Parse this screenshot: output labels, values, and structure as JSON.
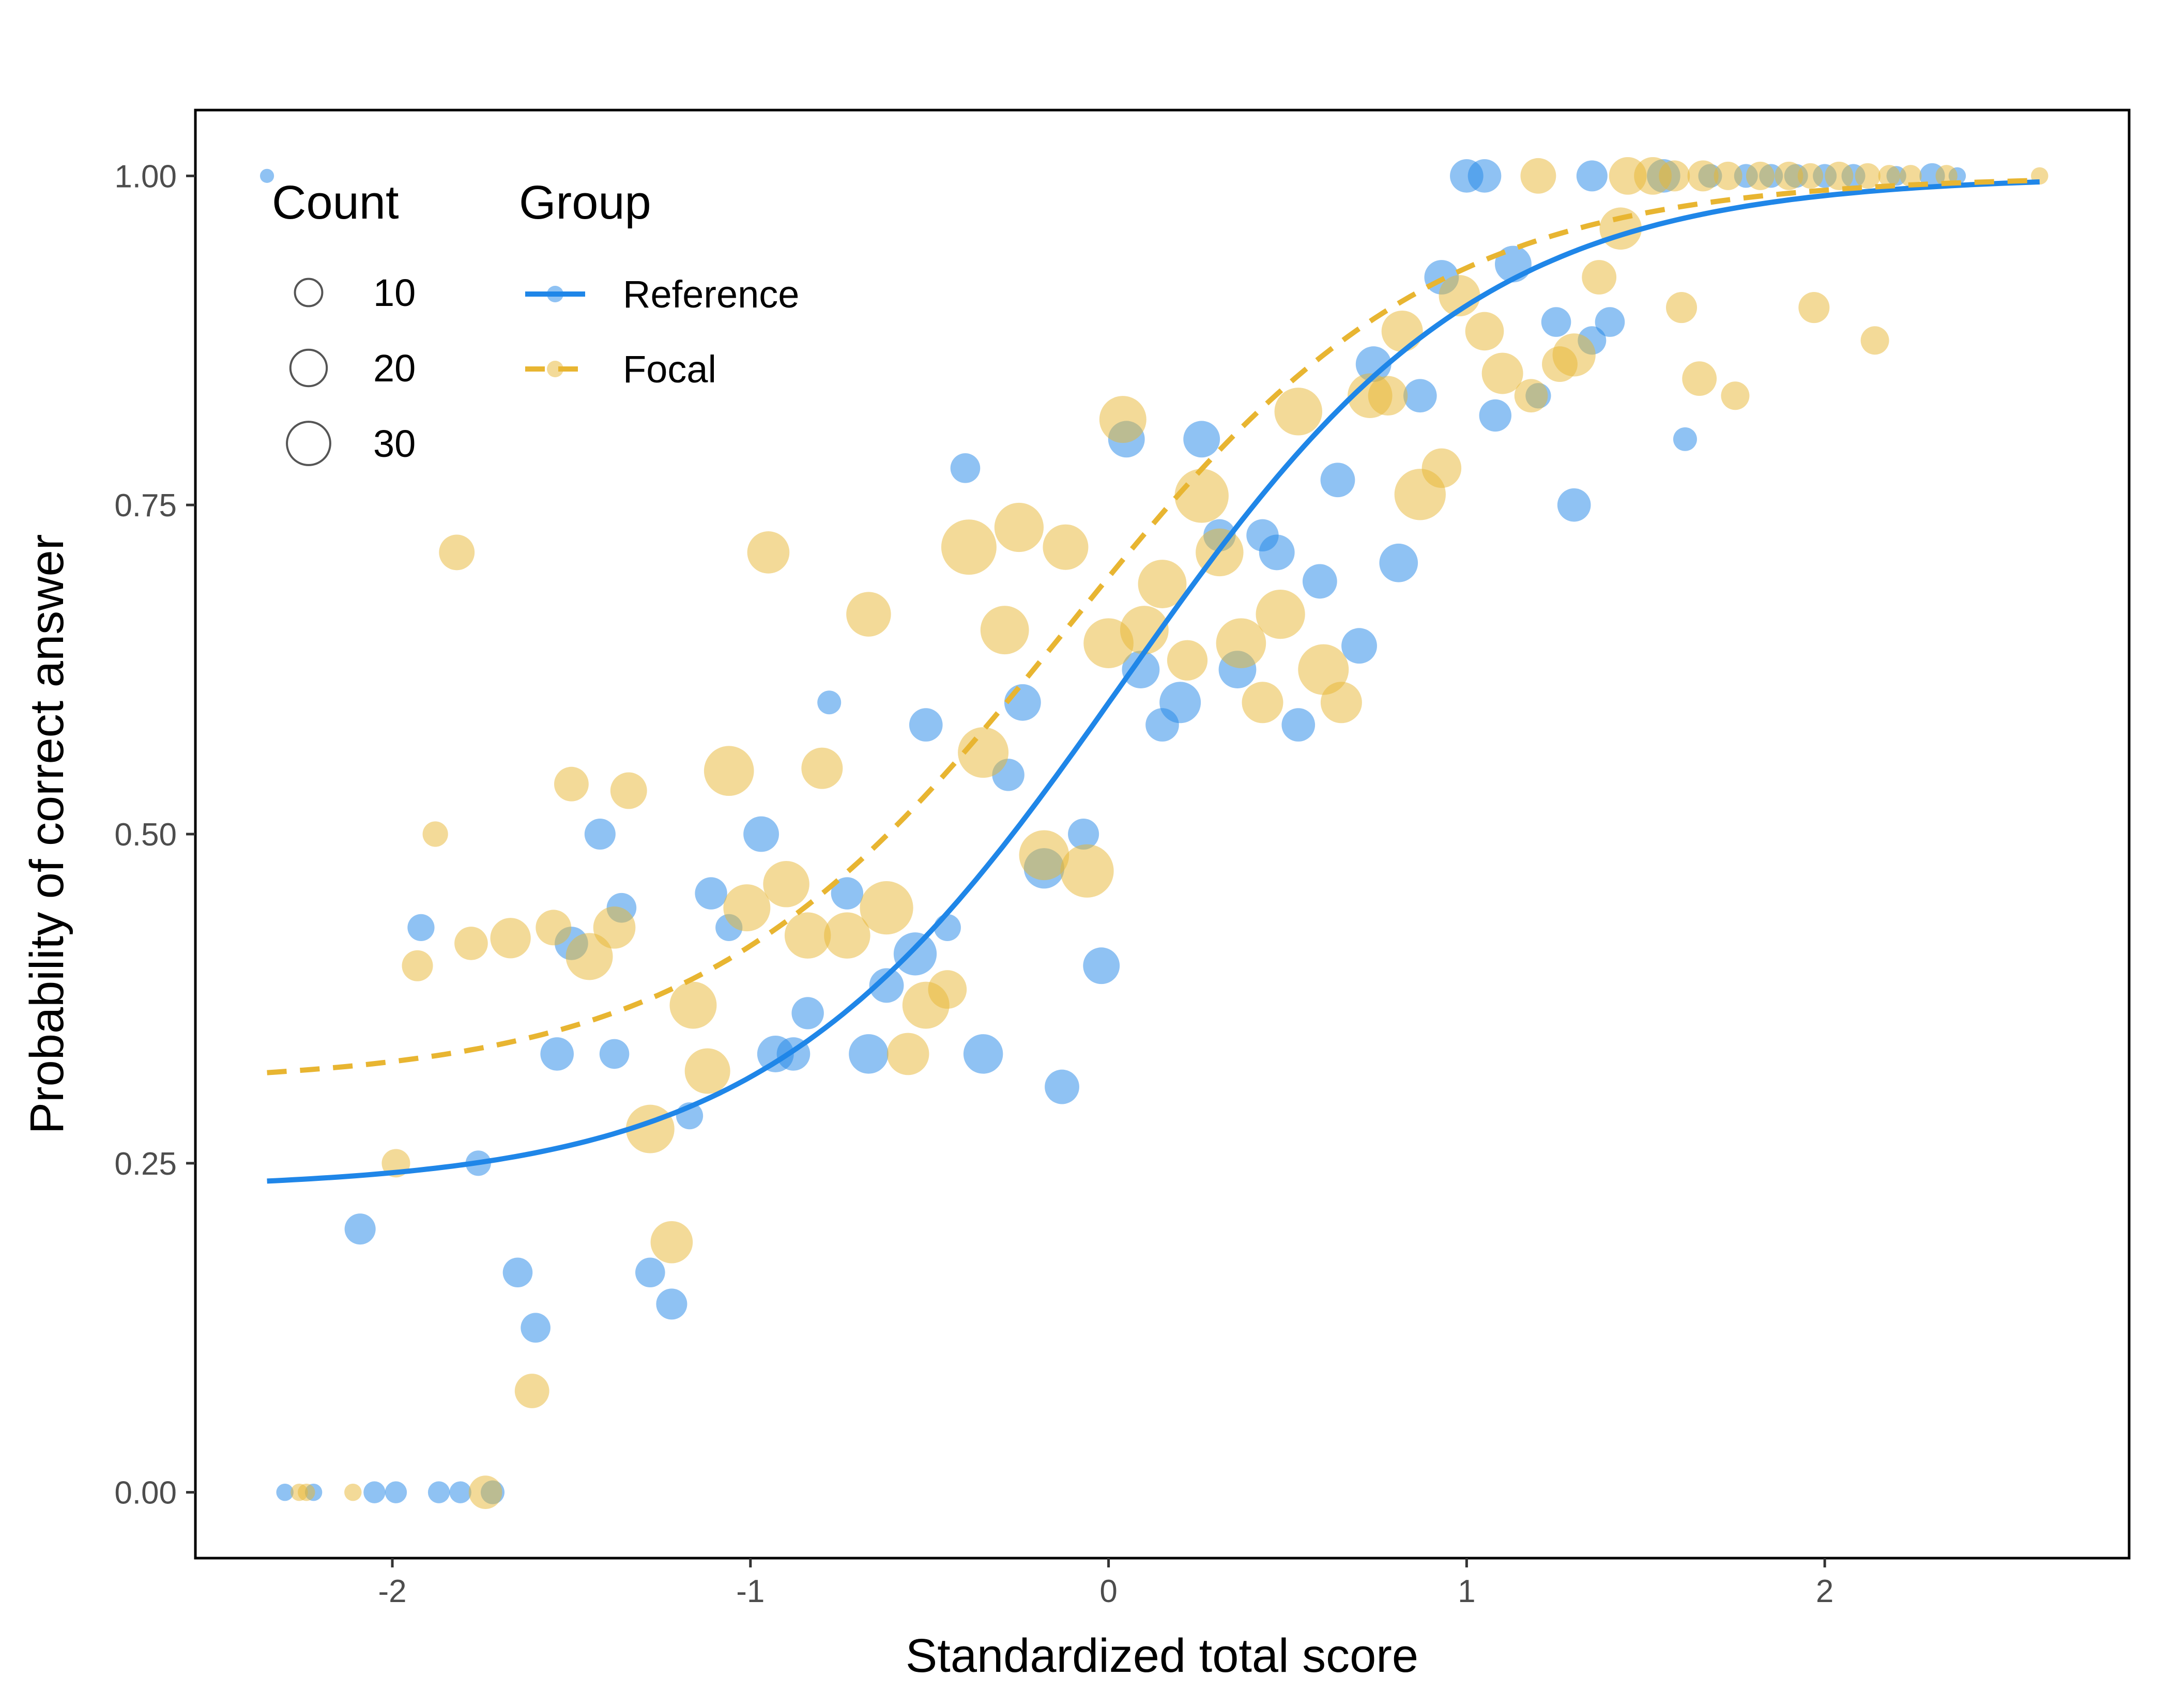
{
  "chart_data": {
    "type": "scatter",
    "xlabel": "Standardized total score",
    "ylabel": "Probability of correct answer",
    "xlim": [
      -2.55,
      2.85
    ],
    "ylim": [
      -0.05,
      1.05
    ],
    "x_ticks": [
      -2,
      -1,
      0,
      1,
      2
    ],
    "x_tick_labels": [
      "-2",
      "-1",
      "0",
      "1",
      "2"
    ],
    "y_ticks": [
      0,
      0.25,
      0.5,
      0.75,
      1
    ],
    "y_tick_labels": [
      "0.00",
      "0.25",
      "0.50",
      "0.75",
      "1.00"
    ],
    "grid": false,
    "legend_position": "top-left",
    "legend": {
      "size_title": "Count",
      "size_entries": [
        {
          "label": "10",
          "count": 10
        },
        {
          "label": "20",
          "count": 20
        },
        {
          "label": "30",
          "count": 30
        }
      ],
      "group_title": "Group",
      "group_entries": [
        {
          "label": "Reference",
          "series_index": 0
        },
        {
          "label": "Focal",
          "series_index": 1
        }
      ]
    },
    "series": [
      {
        "name": "Reference",
        "color": "#1f86e8",
        "line_style": "solid",
        "curve": {
          "a": -2.2,
          "b": 1.1
        },
        "points": [
          {
            "x": -2.35,
            "y": 1.0,
            "n": 1
          },
          {
            "x": 1.0,
            "y": 1.0,
            "n": 12
          },
          {
            "x": 1.05,
            "y": 1.0,
            "n": 12
          },
          {
            "x": 1.35,
            "y": 1.0,
            "n": 10
          },
          {
            "x": 1.55,
            "y": 1.0,
            "n": 12
          },
          {
            "x": 1.68,
            "y": 1.0,
            "n": 5
          },
          {
            "x": 1.78,
            "y": 1.0,
            "n": 5
          },
          {
            "x": 1.85,
            "y": 1.0,
            "n": 5
          },
          {
            "x": 1.92,
            "y": 1.0,
            "n": 5
          },
          {
            "x": 2.0,
            "y": 1.0,
            "n": 5
          },
          {
            "x": 2.08,
            "y": 1.0,
            "n": 5
          },
          {
            "x": 2.2,
            "y": 1.0,
            "n": 3
          },
          {
            "x": 2.3,
            "y": 1.0,
            "n": 6
          },
          {
            "x": 2.37,
            "y": 1.0,
            "n": 2
          },
          {
            "x": 1.13,
            "y": 0.933,
            "n": 15
          },
          {
            "x": 0.93,
            "y": 0.923,
            "n": 13
          },
          {
            "x": 1.25,
            "y": 0.889,
            "n": 9
          },
          {
            "x": 1.4,
            "y": 0.889,
            "n": 9
          },
          {
            "x": 1.35,
            "y": 0.875,
            "n": 8
          },
          {
            "x": 0.74,
            "y": 0.857,
            "n": 14
          },
          {
            "x": 0.87,
            "y": 0.833,
            "n": 12
          },
          {
            "x": 1.2,
            "y": 0.833,
            "n": 6
          },
          {
            "x": 1.08,
            "y": 0.818,
            "n": 11
          },
          {
            "x": 0.26,
            "y": 0.8,
            "n": 15
          },
          {
            "x": 0.05,
            "y": 0.8,
            "n": 15
          },
          {
            "x": 1.61,
            "y": 0.8,
            "n": 5
          },
          {
            "x": -0.4,
            "y": 0.778,
            "n": 9
          },
          {
            "x": 0.64,
            "y": 0.769,
            "n": 13
          },
          {
            "x": 1.3,
            "y": 0.75,
            "n": 12
          },
          {
            "x": 0.31,
            "y": 0.727,
            "n": 11
          },
          {
            "x": 0.43,
            "y": 0.727,
            "n": 11
          },
          {
            "x": 0.47,
            "y": 0.714,
            "n": 14
          },
          {
            "x": 0.81,
            "y": 0.706,
            "n": 17
          },
          {
            "x": 0.59,
            "y": 0.692,
            "n": 13
          },
          {
            "x": 0.7,
            "y": 0.643,
            "n": 14
          },
          {
            "x": 0.09,
            "y": 0.625,
            "n": 16
          },
          {
            "x": 0.36,
            "y": 0.625,
            "n": 16
          },
          {
            "x": 0.2,
            "y": 0.6,
            "n": 20
          },
          {
            "x": -0.78,
            "y": 0.6,
            "n": 5
          },
          {
            "x": -0.24,
            "y": 0.6,
            "n": 15
          },
          {
            "x": 0.53,
            "y": 0.583,
            "n": 12
          },
          {
            "x": 0.15,
            "y": 0.583,
            "n": 12
          },
          {
            "x": -0.51,
            "y": 0.583,
            "n": 12
          },
          {
            "x": -0.28,
            "y": 0.545,
            "n": 11
          },
          {
            "x": -0.97,
            "y": 0.5,
            "n": 14
          },
          {
            "x": -1.42,
            "y": 0.5,
            "n": 10
          },
          {
            "x": -0.07,
            "y": 0.5,
            "n": 10
          },
          {
            "x": -0.18,
            "y": 0.474,
            "n": 19
          },
          {
            "x": -1.11,
            "y": 0.455,
            "n": 11
          },
          {
            "x": -0.73,
            "y": 0.455,
            "n": 11
          },
          {
            "x": -1.36,
            "y": 0.444,
            "n": 9
          },
          {
            "x": -1.06,
            "y": 0.429,
            "n": 7
          },
          {
            "x": -0.45,
            "y": 0.429,
            "n": 7
          },
          {
            "x": -1.92,
            "y": 0.429,
            "n": 7
          },
          {
            "x": -1.5,
            "y": 0.417,
            "n": 12
          },
          {
            "x": -0.54,
            "y": 0.409,
            "n": 22
          },
          {
            "x": -0.02,
            "y": 0.4,
            "n": 15
          },
          {
            "x": -0.62,
            "y": 0.385,
            "n": 13
          },
          {
            "x": -0.84,
            "y": 0.364,
            "n": 11
          },
          {
            "x": -1.54,
            "y": 0.333,
            "n": 12
          },
          {
            "x": -1.38,
            "y": 0.333,
            "n": 9
          },
          {
            "x": -0.93,
            "y": 0.333,
            "n": 15
          },
          {
            "x": -0.88,
            "y": 0.333,
            "n": 12
          },
          {
            "x": -0.67,
            "y": 0.333,
            "n": 18
          },
          {
            "x": -0.35,
            "y": 0.333,
            "n": 18
          },
          {
            "x": -0.13,
            "y": 0.308,
            "n": 13
          },
          {
            "x": -1.17,
            "y": 0.286,
            "n": 7
          },
          {
            "x": -1.76,
            "y": 0.25,
            "n": 6
          },
          {
            "x": -2.09,
            "y": 0.2,
            "n": 10
          },
          {
            "x": -1.65,
            "y": 0.167,
            "n": 9
          },
          {
            "x": -1.28,
            "y": 0.167,
            "n": 9
          },
          {
            "x": -1.22,
            "y": 0.143,
            "n": 10
          },
          {
            "x": -1.6,
            "y": 0.125,
            "n": 9
          },
          {
            "x": -2.3,
            "y": 0.0,
            "n": 2
          },
          {
            "x": -2.22,
            "y": 0.0,
            "n": 2
          },
          {
            "x": -2.05,
            "y": 0.0,
            "n": 4
          },
          {
            "x": -1.99,
            "y": 0.0,
            "n": 4
          },
          {
            "x": -1.87,
            "y": 0.0,
            "n": 4
          },
          {
            "x": -1.81,
            "y": 0.0,
            "n": 4
          },
          {
            "x": -1.72,
            "y": 0.0,
            "n": 5
          }
        ]
      },
      {
        "name": "Focal",
        "color": "#e8b531",
        "line_style": "dashed",
        "curve": {
          "a": -1.42,
          "b": 1.0
        },
        "points": [
          {
            "x": 1.2,
            "y": 1.0,
            "n": 14
          },
          {
            "x": 1.45,
            "y": 1.0,
            "n": 16
          },
          {
            "x": 1.52,
            "y": 1.0,
            "n": 16
          },
          {
            "x": 1.58,
            "y": 1.0,
            "n": 10
          },
          {
            "x": 1.66,
            "y": 1.0,
            "n": 10
          },
          {
            "x": 1.73,
            "y": 1.0,
            "n": 8
          },
          {
            "x": 1.82,
            "y": 1.0,
            "n": 8
          },
          {
            "x": 1.9,
            "y": 1.0,
            "n": 8
          },
          {
            "x": 1.96,
            "y": 1.0,
            "n": 6
          },
          {
            "x": 2.04,
            "y": 1.0,
            "n": 8
          },
          {
            "x": 2.12,
            "y": 1.0,
            "n": 6
          },
          {
            "x": 2.18,
            "y": 1.0,
            "n": 4
          },
          {
            "x": 2.24,
            "y": 1.0,
            "n": 4
          },
          {
            "x": 2.34,
            "y": 1.0,
            "n": 4
          },
          {
            "x": 2.6,
            "y": 1.0,
            "n": 2
          },
          {
            "x": 1.43,
            "y": 0.96,
            "n": 21
          },
          {
            "x": 1.37,
            "y": 0.923,
            "n": 13
          },
          {
            "x": 0.98,
            "y": 0.909,
            "n": 20
          },
          {
            "x": 1.97,
            "y": 0.9,
            "n": 10
          },
          {
            "x": 1.6,
            "y": 0.9,
            "n": 10
          },
          {
            "x": 1.05,
            "y": 0.882,
            "n": 17
          },
          {
            "x": 0.82,
            "y": 0.882,
            "n": 20
          },
          {
            "x": 2.14,
            "y": 0.875,
            "n": 8
          },
          {
            "x": 1.3,
            "y": 0.864,
            "n": 22
          },
          {
            "x": 1.26,
            "y": 0.857,
            "n": 14
          },
          {
            "x": 1.1,
            "y": 0.85,
            "n": 20
          },
          {
            "x": 1.65,
            "y": 0.846,
            "n": 13
          },
          {
            "x": 1.18,
            "y": 0.833,
            "n": 12
          },
          {
            "x": 1.75,
            "y": 0.833,
            "n": 8
          },
          {
            "x": 0.73,
            "y": 0.833,
            "n": 24
          },
          {
            "x": 0.78,
            "y": 0.833,
            "n": 18
          },
          {
            "x": 0.53,
            "y": 0.821,
            "n": 28
          },
          {
            "x": 0.04,
            "y": 0.815,
            "n": 27
          },
          {
            "x": 0.93,
            "y": 0.778,
            "n": 18
          },
          {
            "x": 0.87,
            "y": 0.758,
            "n": 33
          },
          {
            "x": 0.26,
            "y": 0.757,
            "n": 37
          },
          {
            "x": -0.25,
            "y": 0.733,
            "n": 30
          },
          {
            "x": -1.82,
            "y": 0.714,
            "n": 14
          },
          {
            "x": -0.95,
            "y": 0.714,
            "n": 21
          },
          {
            "x": -0.39,
            "y": 0.718,
            "n": 39
          },
          {
            "x": -0.12,
            "y": 0.718,
            "n": 25
          },
          {
            "x": 0.31,
            "y": 0.714,
            "n": 28
          },
          {
            "x": 0.15,
            "y": 0.69,
            "n": 29
          },
          {
            "x": -0.67,
            "y": 0.667,
            "n": 24
          },
          {
            "x": 0.48,
            "y": 0.667,
            "n": 30
          },
          {
            "x": 0.1,
            "y": 0.655,
            "n": 29
          },
          {
            "x": -0.29,
            "y": 0.655,
            "n": 29
          },
          {
            "x": 0.0,
            "y": 0.645,
            "n": 31
          },
          {
            "x": 0.37,
            "y": 0.645,
            "n": 31
          },
          {
            "x": 0.22,
            "y": 0.632,
            "n": 19
          },
          {
            "x": 0.6,
            "y": 0.625,
            "n": 32
          },
          {
            "x": 0.43,
            "y": 0.6,
            "n": 20
          },
          {
            "x": 0.65,
            "y": 0.6,
            "n": 20
          },
          {
            "x": -0.35,
            "y": 0.562,
            "n": 32
          },
          {
            "x": -1.06,
            "y": 0.548,
            "n": 31
          },
          {
            "x": -0.8,
            "y": 0.55,
            "n": 20
          },
          {
            "x": -1.34,
            "y": 0.533,
            "n": 15
          },
          {
            "x": -1.5,
            "y": 0.538,
            "n": 13
          },
          {
            "x": -1.88,
            "y": 0.5,
            "n": 6
          },
          {
            "x": -0.18,
            "y": 0.484,
            "n": 31
          },
          {
            "x": -0.9,
            "y": 0.462,
            "n": 26
          },
          {
            "x": -0.06,
            "y": 0.472,
            "n": 36
          },
          {
            "x": -1.01,
            "y": 0.444,
            "n": 27
          },
          {
            "x": -0.62,
            "y": 0.444,
            "n": 36
          },
          {
            "x": -1.38,
            "y": 0.429,
            "n": 21
          },
          {
            "x": -1.55,
            "y": 0.429,
            "n": 14
          },
          {
            "x": -0.84,
            "y": 0.423,
            "n": 26
          },
          {
            "x": -0.73,
            "y": 0.423,
            "n": 26
          },
          {
            "x": -1.67,
            "y": 0.421,
            "n": 19
          },
          {
            "x": -1.78,
            "y": 0.417,
            "n": 12
          },
          {
            "x": -1.45,
            "y": 0.407,
            "n": 27
          },
          {
            "x": -1.93,
            "y": 0.4,
            "n": 10
          },
          {
            "x": -0.45,
            "y": 0.382,
            "n": 17
          },
          {
            "x": -0.51,
            "y": 0.37,
            "n": 27
          },
          {
            "x": -1.16,
            "y": 0.37,
            "n": 27
          },
          {
            "x": -0.56,
            "y": 0.333,
            "n": 21
          },
          {
            "x": -1.12,
            "y": 0.32,
            "n": 25
          },
          {
            "x": -1.28,
            "y": 0.276,
            "n": 29
          },
          {
            "x": -1.99,
            "y": 0.25,
            "n": 8
          },
          {
            "x": -1.22,
            "y": 0.19,
            "n": 21
          },
          {
            "x": -1.61,
            "y": 0.077,
            "n": 13
          },
          {
            "x": -2.26,
            "y": 0.0,
            "n": 2
          },
          {
            "x": -2.24,
            "y": 0.0,
            "n": 2
          },
          {
            "x": -2.11,
            "y": 0.0,
            "n": 2
          },
          {
            "x": -1.74,
            "y": 0.0,
            "n": 12
          }
        ]
      }
    ]
  }
}
